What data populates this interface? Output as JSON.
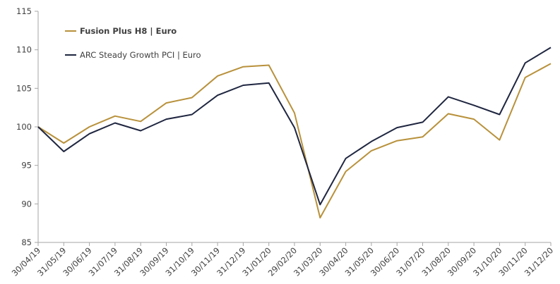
{
  "chart_data": {
    "type": "line",
    "categories": [
      "30/04/19",
      "31/05/19",
      "30/06/19",
      "31/07/19",
      "31/08/19",
      "30/09/19",
      "31/10/19",
      "30/11/19",
      "31/12/19",
      "31/01/20",
      "29/02/20",
      "31/03/20",
      "30/04/20",
      "31/05/20",
      "30/06/20",
      "31/07/20",
      "31/08/20",
      "30/09/20",
      "31/10/20",
      "30/11/20",
      "31/12/20"
    ],
    "series": [
      {
        "name": "Fusion Plus H8 | Euro",
        "color": "#b8913b",
        "values": [
          100,
          97.9,
          100,
          101.4,
          100.7,
          103.1,
          103.8,
          106.6,
          107.8,
          108.0,
          101.8,
          88.2,
          94.2,
          96.9,
          98.2,
          98.7,
          101.7,
          101.0,
          98.3,
          106.4,
          108.2
        ]
      },
      {
        "name": "ARC Steady Growth PCI | Euro",
        "color": "#1f2640",
        "values": [
          100,
          96.8,
          99.1,
          100.5,
          99.5,
          101.0,
          101.6,
          104.1,
          105.4,
          105.7,
          99.9,
          89.9,
          95.9,
          98.1,
          99.9,
          100.6,
          103.9,
          102.8,
          101.6,
          108.3,
          110.3
        ]
      }
    ],
    "ylim": [
      85,
      115
    ],
    "yticks": [
      85,
      90,
      95,
      100,
      105,
      110,
      115
    ],
    "grid": false,
    "legend": "upper left"
  }
}
